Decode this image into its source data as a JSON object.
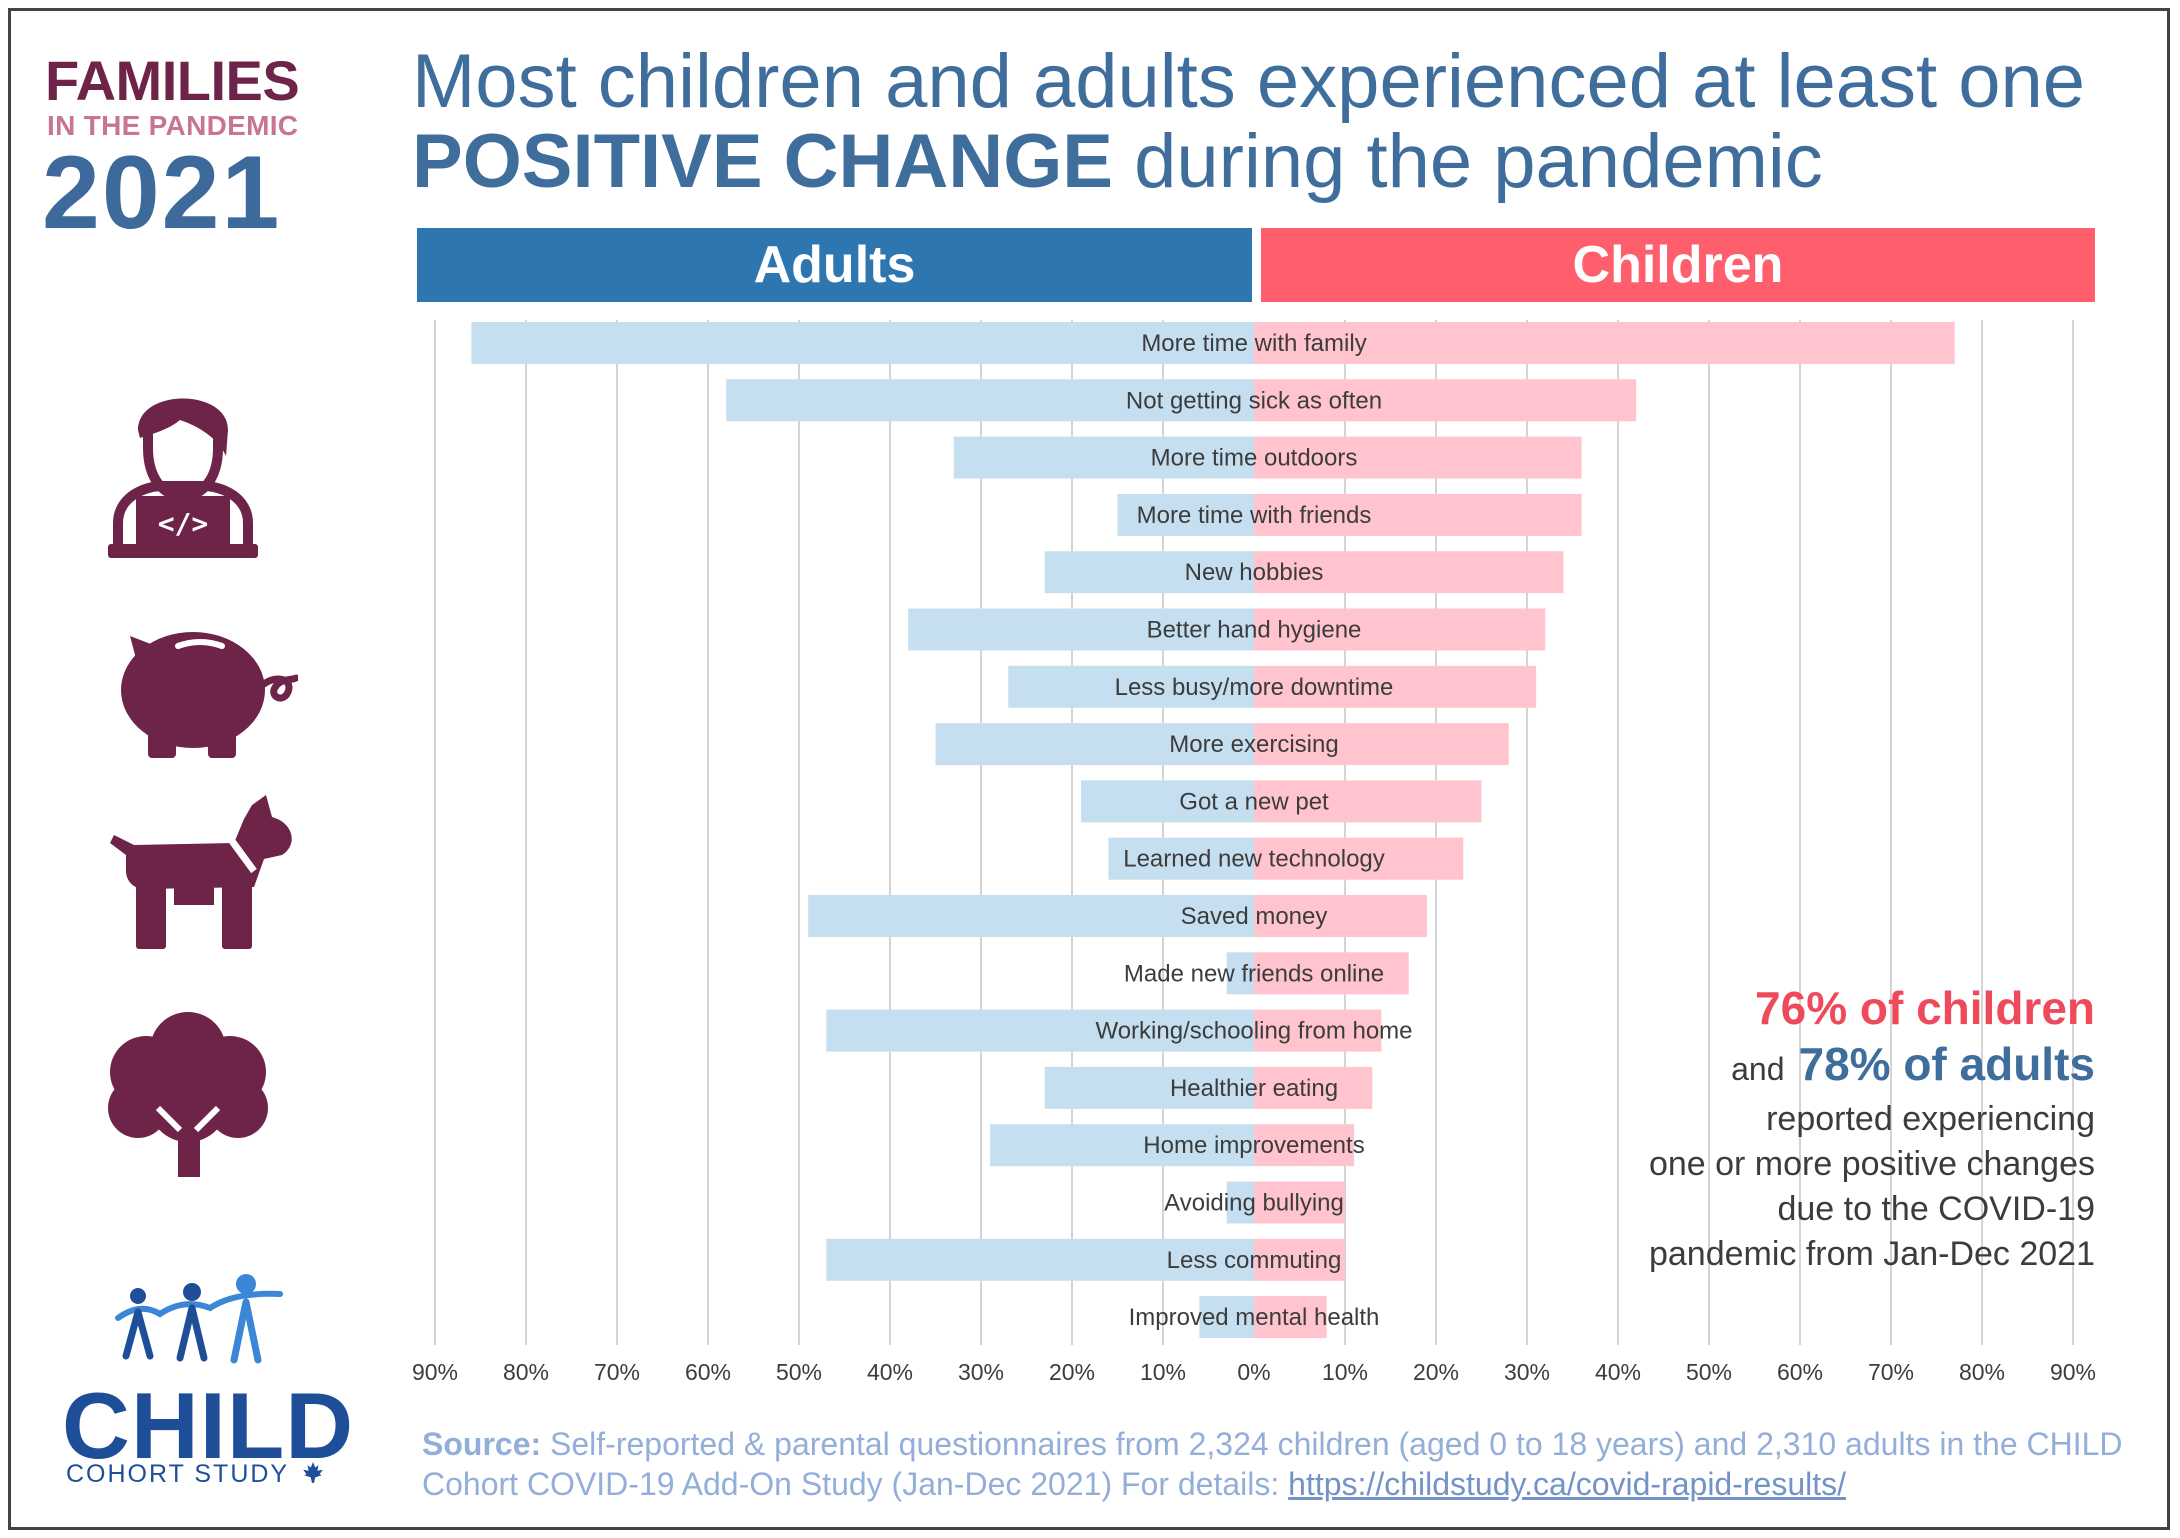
{
  "brand": {
    "line1": "FAMILIES",
    "line2": "IN THE PANDEMIC",
    "year": "2021"
  },
  "title": {
    "part1": "Most children and adults experienced at least one ",
    "emphasis": "POSITIVE CHANGE",
    "part2": " during the pandemic"
  },
  "headers": {
    "left": "Adults",
    "right": "Children"
  },
  "icons": [
    "person-laptop-icon",
    "piggy-bank-icon",
    "dog-icon",
    "tree-icon",
    "child-cohort-people-icon",
    "maple-leaf-icon"
  ],
  "colors": {
    "adults_header": "#2e76b0",
    "children_header": "#ff5e6c",
    "adults_bar": "#c5dff0",
    "children_bar": "#ffc4cd",
    "brand_purple": "#6e2349",
    "brand_blue": "#3d6a9a"
  },
  "chart_data": {
    "type": "bar",
    "orientation": "horizontal-diverging",
    "categories": [
      "More time with family",
      "Not getting sick as often",
      "More time outdoors",
      "More time with friends",
      "New hobbies",
      "Better hand hygiene",
      "Less busy/more downtime",
      "More exercising",
      "Got a new pet",
      "Learned new technology",
      "Saved money",
      "Made new friends online",
      "Working/schooling from home",
      "Healthier eating",
      "Home improvements",
      "Avoiding bullying",
      "Less commuting",
      "Improved mental health"
    ],
    "series": [
      {
        "name": "Adults",
        "side": "left",
        "values": [
          86,
          58,
          33,
          15,
          23,
          38,
          27,
          35,
          19,
          16,
          49,
          3,
          47,
          23,
          29,
          3,
          47,
          6
        ]
      },
      {
        "name": "Children",
        "side": "right",
        "values": [
          77,
          42,
          36,
          36,
          34,
          32,
          31,
          28,
          25,
          23,
          19,
          17,
          14,
          13,
          11,
          10,
          10,
          8
        ]
      }
    ],
    "xlim": [
      0,
      90
    ],
    "tick_values": [
      90,
      80,
      70,
      60,
      50,
      40,
      30,
      20,
      10,
      0,
      10,
      20,
      30,
      40,
      50,
      60,
      70,
      80,
      90
    ],
    "tick_labels": [
      "90%",
      "80%",
      "70%",
      "60%",
      "50%",
      "40%",
      "30%",
      "20%",
      "10%",
      "0%",
      "10%",
      "20%",
      "30%",
      "40%",
      "50%",
      "60%",
      "70%",
      "80%",
      "90%"
    ],
    "grid": true
  },
  "callout": {
    "children_stat": "76% of children",
    "and": "and",
    "adults_stat": "78% of adults",
    "lines": [
      "reported experiencing",
      "one or more positive changes",
      "due to the COVID-19",
      "pandemic from Jan-Dec 2021"
    ]
  },
  "logo": {
    "word": "CHILD",
    "sub": "COHORT STUDY"
  },
  "source": {
    "label": "Source:",
    "text": " Self-reported & parental questionnaires from 2,324 children (aged 0 to 18 years) and 2,310 adults in the CHILD Cohort COVID-19 Add-On Study (Jan-Dec 2021) For details: ",
    "link": "https://childstudy.ca/covid-rapid-results/"
  }
}
